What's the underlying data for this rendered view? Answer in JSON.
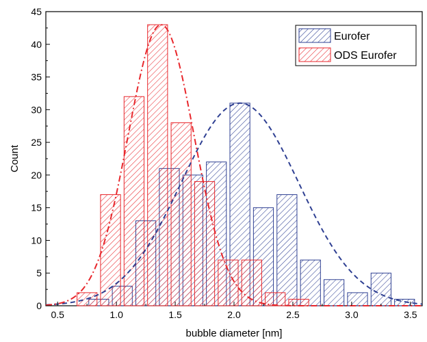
{
  "chart_data": {
    "type": "bar",
    "xlabel": "bubble diameter [nm]",
    "ylabel": "Count",
    "xlim": [
      0.4,
      3.6
    ],
    "ylim": [
      0,
      45
    ],
    "xticks": [
      0.5,
      1.0,
      1.5,
      2.0,
      2.5,
      3.0,
      3.5
    ],
    "xtick_labels": [
      "0.5",
      "1.0",
      "1.5",
      "2.0",
      "2.5",
      "3.0",
      "3.5"
    ],
    "yticks": [
      0,
      5,
      10,
      15,
      20,
      25,
      30,
      35,
      40,
      45
    ],
    "ytick_labels": [
      "0",
      "5",
      "10",
      "15",
      "20",
      "25",
      "30",
      "35",
      "40",
      "45"
    ],
    "grid": false,
    "legend_position": "top-right",
    "series": [
      {
        "name": "Eurofer",
        "color": "#2e3f92",
        "pattern": "hatched",
        "fit": "gaussian",
        "fit_style": "dashed",
        "fit_center": 2.05,
        "fit_peak": 31,
        "fit_sigma": 0.5,
        "x": [
          0.85,
          1.05,
          1.25,
          1.45,
          1.65,
          1.85,
          2.05,
          2.25,
          2.45,
          2.65,
          2.85,
          3.05,
          3.25,
          3.45
        ],
        "values": [
          1,
          3,
          13,
          21,
          20,
          22,
          31,
          15,
          17,
          7,
          4,
          2,
          5,
          1
        ]
      },
      {
        "name": "ODS Eurofer",
        "color": "#e8262b",
        "pattern": "hatched",
        "fit": "gaussian",
        "fit_style": "dash-dot",
        "fit_center": 1.38,
        "fit_peak": 43,
        "fit_sigma": 0.28,
        "x": [
          0.75,
          0.95,
          1.15,
          1.35,
          1.55,
          1.75,
          1.95,
          2.15,
          2.35,
          2.55
        ],
        "values": [
          2,
          17,
          32,
          43,
          28,
          19,
          7,
          7,
          2,
          1
        ]
      }
    ]
  }
}
